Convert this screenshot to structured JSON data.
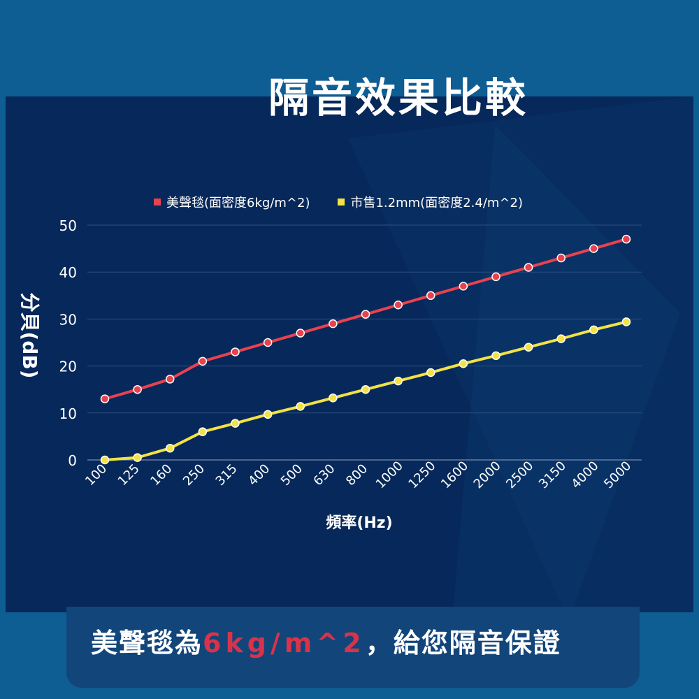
{
  "page": {
    "title": "隔音效果比較",
    "footer_prefix": "美聲毯為",
    "footer_accent": "6kg/m^2",
    "footer_suffix": "，給您隔音保證"
  },
  "colors": {
    "background": "#0e5d93",
    "panel": "#07285a",
    "accent": "#d8334a",
    "series_red": "#e8424f",
    "series_yellow": "#f2e244"
  },
  "chart_data": {
    "type": "line",
    "xlabel": "頻率(Hz)",
    "ylabel": "分貝(dB)",
    "ylim": [
      0,
      50
    ],
    "yticks": [
      0,
      10,
      20,
      30,
      40,
      50
    ],
    "grid": true,
    "legend_position": "top",
    "categories": [
      "100",
      "125",
      "160",
      "250",
      "315",
      "400",
      "500",
      "630",
      "800",
      "1000",
      "1250",
      "1600",
      "2000",
      "2500",
      "3150",
      "4000",
      "5000"
    ],
    "series": [
      {
        "name": "美聲毯(面密度6kg/m^2)",
        "color": "#e8424f",
        "values": [
          13,
          15,
          17.2,
          21,
          23,
          25,
          27,
          29,
          31,
          33,
          35,
          37,
          39,
          41,
          43,
          45,
          47
        ]
      },
      {
        "name": "市售1.2mm(面密度2.4/m^2)",
        "color": "#f2e244",
        "values": [
          0,
          0.5,
          2.5,
          6,
          7.8,
          9.7,
          11.4,
          13.2,
          15,
          16.8,
          18.6,
          20.5,
          22.2,
          24,
          25.8,
          27.7,
          29.4
        ]
      }
    ]
  }
}
